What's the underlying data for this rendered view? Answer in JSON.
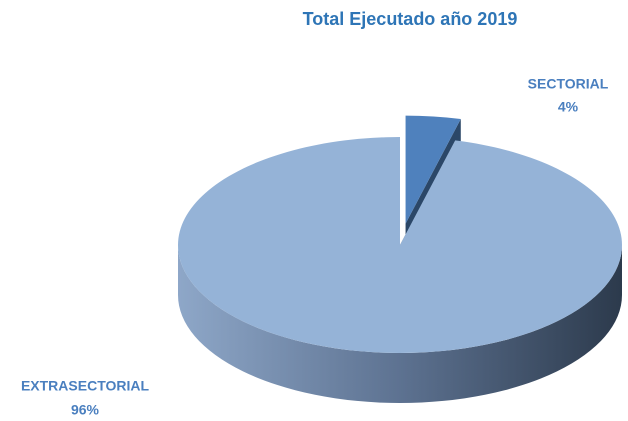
{
  "chart_data": {
    "type": "pie",
    "title": "Total Ejecutado año 2019",
    "categories": [
      "SECTORIAL",
      "EXTRASECTORIAL"
    ],
    "values": [
      4,
      96
    ],
    "value_labels": [
      "4%",
      "96%"
    ],
    "colors": [
      "#4f81bd",
      "#95b3d7"
    ]
  }
}
